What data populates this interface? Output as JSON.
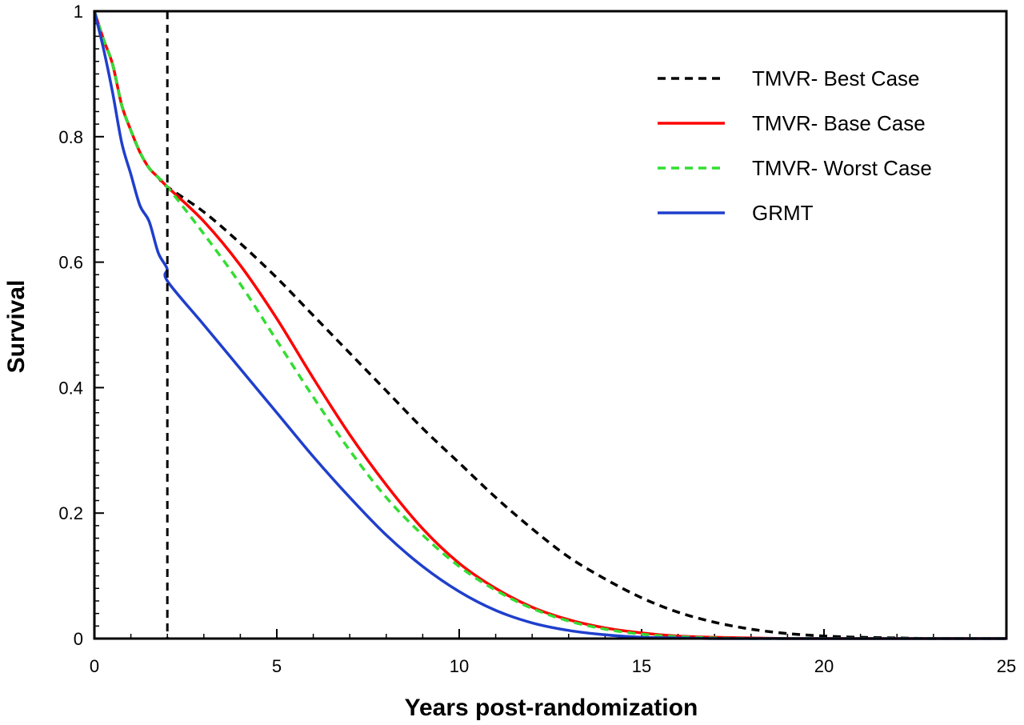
{
  "chart_data": {
    "type": "line",
    "title": "",
    "xlabel": "Years post-randomization",
    "ylabel": "Survival",
    "xlim": [
      0,
      25
    ],
    "ylim": [
      0,
      1
    ],
    "x_ticks": [
      0,
      5,
      10,
      15,
      20,
      25
    ],
    "y_ticks": [
      0,
      0.2,
      0.4,
      0.6,
      0.8,
      1
    ],
    "x_tick_labels": [
      "0",
      "5",
      "10",
      "15",
      "20",
      "25"
    ],
    "y_tick_labels": [
      "0",
      "0.2",
      "0.4",
      "0.6",
      "0.8",
      "1"
    ],
    "grid": false,
    "legend_position": "top-right",
    "reference_line": {
      "orientation": "vertical",
      "x": 2,
      "style": "dashed",
      "color": "#000000"
    },
    "series": [
      {
        "name": "TMVR- Best Case",
        "color": "#000000",
        "style": "dashed",
        "x": [
          0,
          0.25,
          0.5,
          0.75,
          1.0,
          1.25,
          1.5,
          1.75,
          2,
          3,
          4,
          5,
          6,
          7,
          8,
          9,
          10,
          11,
          12,
          13,
          14,
          15,
          16,
          17,
          18,
          19,
          20,
          21,
          22,
          23,
          24,
          25
        ],
        "y": [
          1.0,
          0.955,
          0.915,
          0.85,
          0.81,
          0.775,
          0.75,
          0.735,
          0.72,
          0.68,
          0.63,
          0.575,
          0.515,
          0.455,
          0.395,
          0.335,
          0.28,
          0.225,
          0.175,
          0.13,
          0.095,
          0.065,
          0.042,
          0.026,
          0.015,
          0.008,
          0.004,
          0.002,
          0.001,
          0.0,
          0.0,
          0.0
        ]
      },
      {
        "name": "TMVR- Base Case",
        "color": "#ff0000",
        "style": "solid",
        "x": [
          0,
          0.25,
          0.5,
          0.75,
          1.0,
          1.25,
          1.5,
          1.75,
          2,
          3,
          4,
          5,
          6,
          7,
          8,
          9,
          10,
          11,
          12,
          13,
          14,
          15,
          16,
          17,
          18,
          19,
          20,
          21,
          22,
          23,
          24,
          25
        ],
        "y": [
          1.0,
          0.955,
          0.915,
          0.85,
          0.81,
          0.775,
          0.75,
          0.735,
          0.72,
          0.665,
          0.595,
          0.51,
          0.415,
          0.325,
          0.245,
          0.175,
          0.12,
          0.08,
          0.05,
          0.03,
          0.017,
          0.009,
          0.004,
          0.002,
          0.001,
          0.0,
          0.0,
          0.0,
          0.0,
          0.0,
          0.0,
          0.0
        ]
      },
      {
        "name": "TMVR- Worst Case",
        "color": "#33dd33",
        "style": "dashed",
        "x": [
          0,
          0.25,
          0.5,
          0.75,
          1.0,
          1.25,
          1.5,
          1.75,
          2,
          3,
          4,
          5,
          6,
          7,
          8,
          9,
          10,
          11,
          12,
          13,
          14,
          15,
          16,
          17,
          18,
          19,
          20,
          21,
          22,
          23,
          24,
          25
        ],
        "y": [
          1.0,
          0.955,
          0.915,
          0.85,
          0.81,
          0.775,
          0.75,
          0.735,
          0.72,
          0.645,
          0.565,
          0.475,
          0.385,
          0.3,
          0.225,
          0.165,
          0.115,
          0.077,
          0.048,
          0.028,
          0.015,
          0.007,
          0.003,
          0.001,
          0.0,
          0.0,
          0.0,
          0.0,
          0.0,
          0.0,
          0.0,
          0.0
        ]
      },
      {
        "name": "GRMT",
        "color": "#1f3fcc",
        "style": "solid",
        "x": [
          0,
          0.25,
          0.5,
          0.75,
          1.0,
          1.25,
          1.5,
          1.75,
          1.99,
          2,
          3,
          4,
          5,
          6,
          7,
          8,
          9,
          10,
          11,
          12,
          13,
          14,
          15,
          16,
          17,
          18,
          19,
          20,
          21,
          22,
          23,
          24,
          25
        ],
        "y": [
          1.0,
          0.94,
          0.87,
          0.79,
          0.74,
          0.69,
          0.665,
          0.615,
          0.59,
          0.57,
          0.5,
          0.43,
          0.36,
          0.29,
          0.225,
          0.165,
          0.115,
          0.075,
          0.045,
          0.025,
          0.013,
          0.006,
          0.002,
          0.001,
          0.0,
          0.0,
          0.0,
          0.0,
          0.0,
          0.0,
          0.0,
          0.0,
          0.0
        ]
      }
    ]
  }
}
